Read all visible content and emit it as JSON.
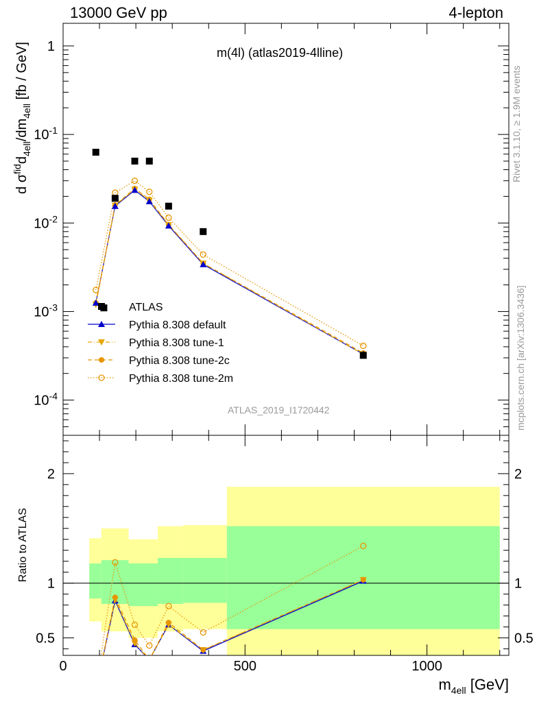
{
  "header": {
    "left": "13000 GeV pp",
    "right": "4-lepton"
  },
  "chart_data": [
    {
      "type": "scatter",
      "title": "m(4l) (atlas2019-4lline)",
      "ylabel": "d σ^fid_4ell / dm_4ell [fb / GeV]",
      "yscale": "log",
      "ylim": [
        4e-05,
        1.8
      ],
      "xlim": [
        0,
        1225
      ],
      "ytick_labels": [
        "1",
        "10^-1",
        "10^-2",
        "10^-3",
        "10^-4"
      ],
      "watermark": "ATLAS_2019_I1720442",
      "series": [
        {
          "name": "ATLAS",
          "marker": "square",
          "color": "#000000",
          "x": [
            90,
            112,
            143,
            197,
            237,
            290,
            385,
            825
          ],
          "y": [
            0.063,
            0.0011,
            0.019,
            0.05,
            0.05,
            0.0155,
            0.008,
            0.00032
          ]
        },
        {
          "name": "Pythia 8.308 default",
          "marker": "triangle-up",
          "line": "solid",
          "color": "#0000cc",
          "x": [
            90,
            143,
            197,
            237,
            290,
            385,
            825
          ],
          "y": [
            0.00125,
            0.0155,
            0.0235,
            0.0175,
            0.0093,
            0.0034,
            0.00033
          ]
        },
        {
          "name": "Pythia 8.308 tune-1",
          "marker": "triangle-down",
          "line": "dashdot",
          "color": "#e8a600",
          "x": [
            90,
            143,
            197,
            237,
            290,
            385,
            825
          ],
          "y": [
            0.0012,
            0.0158,
            0.024,
            0.018,
            0.0095,
            0.0035,
            0.00033
          ]
        },
        {
          "name": "Pythia 8.308 tune-2c",
          "marker": "circle",
          "line": "dashed",
          "color": "#e69500",
          "x": [
            90,
            143,
            197,
            237,
            290,
            385,
            825
          ],
          "y": [
            0.00125,
            0.016,
            0.0245,
            0.0185,
            0.0096,
            0.0035,
            0.00034
          ]
        },
        {
          "name": "Pythia 8.308 tune-2m",
          "marker": "open-circle",
          "line": "dotted",
          "color": "#e69500",
          "x": [
            90,
            143,
            197,
            237,
            290,
            385,
            825
          ],
          "y": [
            0.00175,
            0.022,
            0.03,
            0.0225,
            0.0115,
            0.0044,
            0.00041
          ]
        }
      ]
    },
    {
      "type": "line",
      "ylabel": "Ratio to ATLAS",
      "xlabel": "m_4ell [GeV]",
      "xlim": [
        0,
        1225
      ],
      "ylim": [
        0.34,
        2.35
      ],
      "ytick_labels": [
        "2",
        "1",
        "0.5"
      ],
      "xtick_labels": [
        "0",
        "500",
        "1000"
      ],
      "reference_line": 1,
      "bands": {
        "colors": {
          "inner": "#99ff99",
          "outer": "#ffff99"
        },
        "bins": [
          {
            "x": [
              72,
              105
            ],
            "inner": [
              0.86,
              1.18
            ],
            "outer": [
              0.65,
              1.41
            ]
          },
          {
            "x": [
              105,
              180
            ],
            "inner": [
              0.81,
              1.21
            ],
            "outer": [
              0.56,
              1.5
            ]
          },
          {
            "x": [
              180,
              260
            ],
            "inner": [
              0.79,
              1.18
            ],
            "outer": [
              0.5,
              1.4
            ]
          },
          {
            "x": [
              260,
              330
            ],
            "inner": [
              0.81,
              1.23
            ],
            "outer": [
              0.56,
              1.52
            ]
          },
          {
            "x": [
              330,
              450
            ],
            "inner": [
              0.82,
              1.23
            ],
            "outer": [
              0.58,
              1.53
            ]
          },
          {
            "x": [
              450,
              1200
            ],
            "inner": [
              0.58,
              1.52
            ],
            "outer": [
              0.34,
              1.88
            ]
          }
        ]
      },
      "series": [
        {
          "name": "Pythia 8.308 default",
          "x": [
            90,
            143,
            197,
            237,
            290,
            385,
            825
          ],
          "y": [
            0.02,
            0.84,
            0.44,
            0.3,
            0.62,
            0.38,
            1.02
          ]
        },
        {
          "name": "Pythia 8.308 tune-1",
          "x": [
            90,
            143,
            197,
            237,
            290,
            385,
            825
          ],
          "y": [
            0.02,
            0.85,
            0.45,
            0.3,
            0.62,
            0.39,
            1.03
          ]
        },
        {
          "name": "Pythia 8.308 tune-2c",
          "x": [
            90,
            143,
            197,
            237,
            290,
            385,
            825
          ],
          "y": [
            0.02,
            0.87,
            0.48,
            0.3,
            0.64,
            0.39,
            1.03
          ]
        },
        {
          "name": "Pythia 8.308 tune-2m",
          "x": [
            90,
            143,
            197,
            237,
            290,
            385,
            825
          ],
          "y": [
            0.03,
            1.19,
            0.62,
            0.43,
            0.79,
            0.55,
            1.34
          ]
        }
      ]
    }
  ],
  "side_labels": {
    "rivet": "Rivet 3.1.10, ≥ 1.9M events",
    "mcplots": "mcplots.cern.ch [arXiv:1306.3436]"
  }
}
